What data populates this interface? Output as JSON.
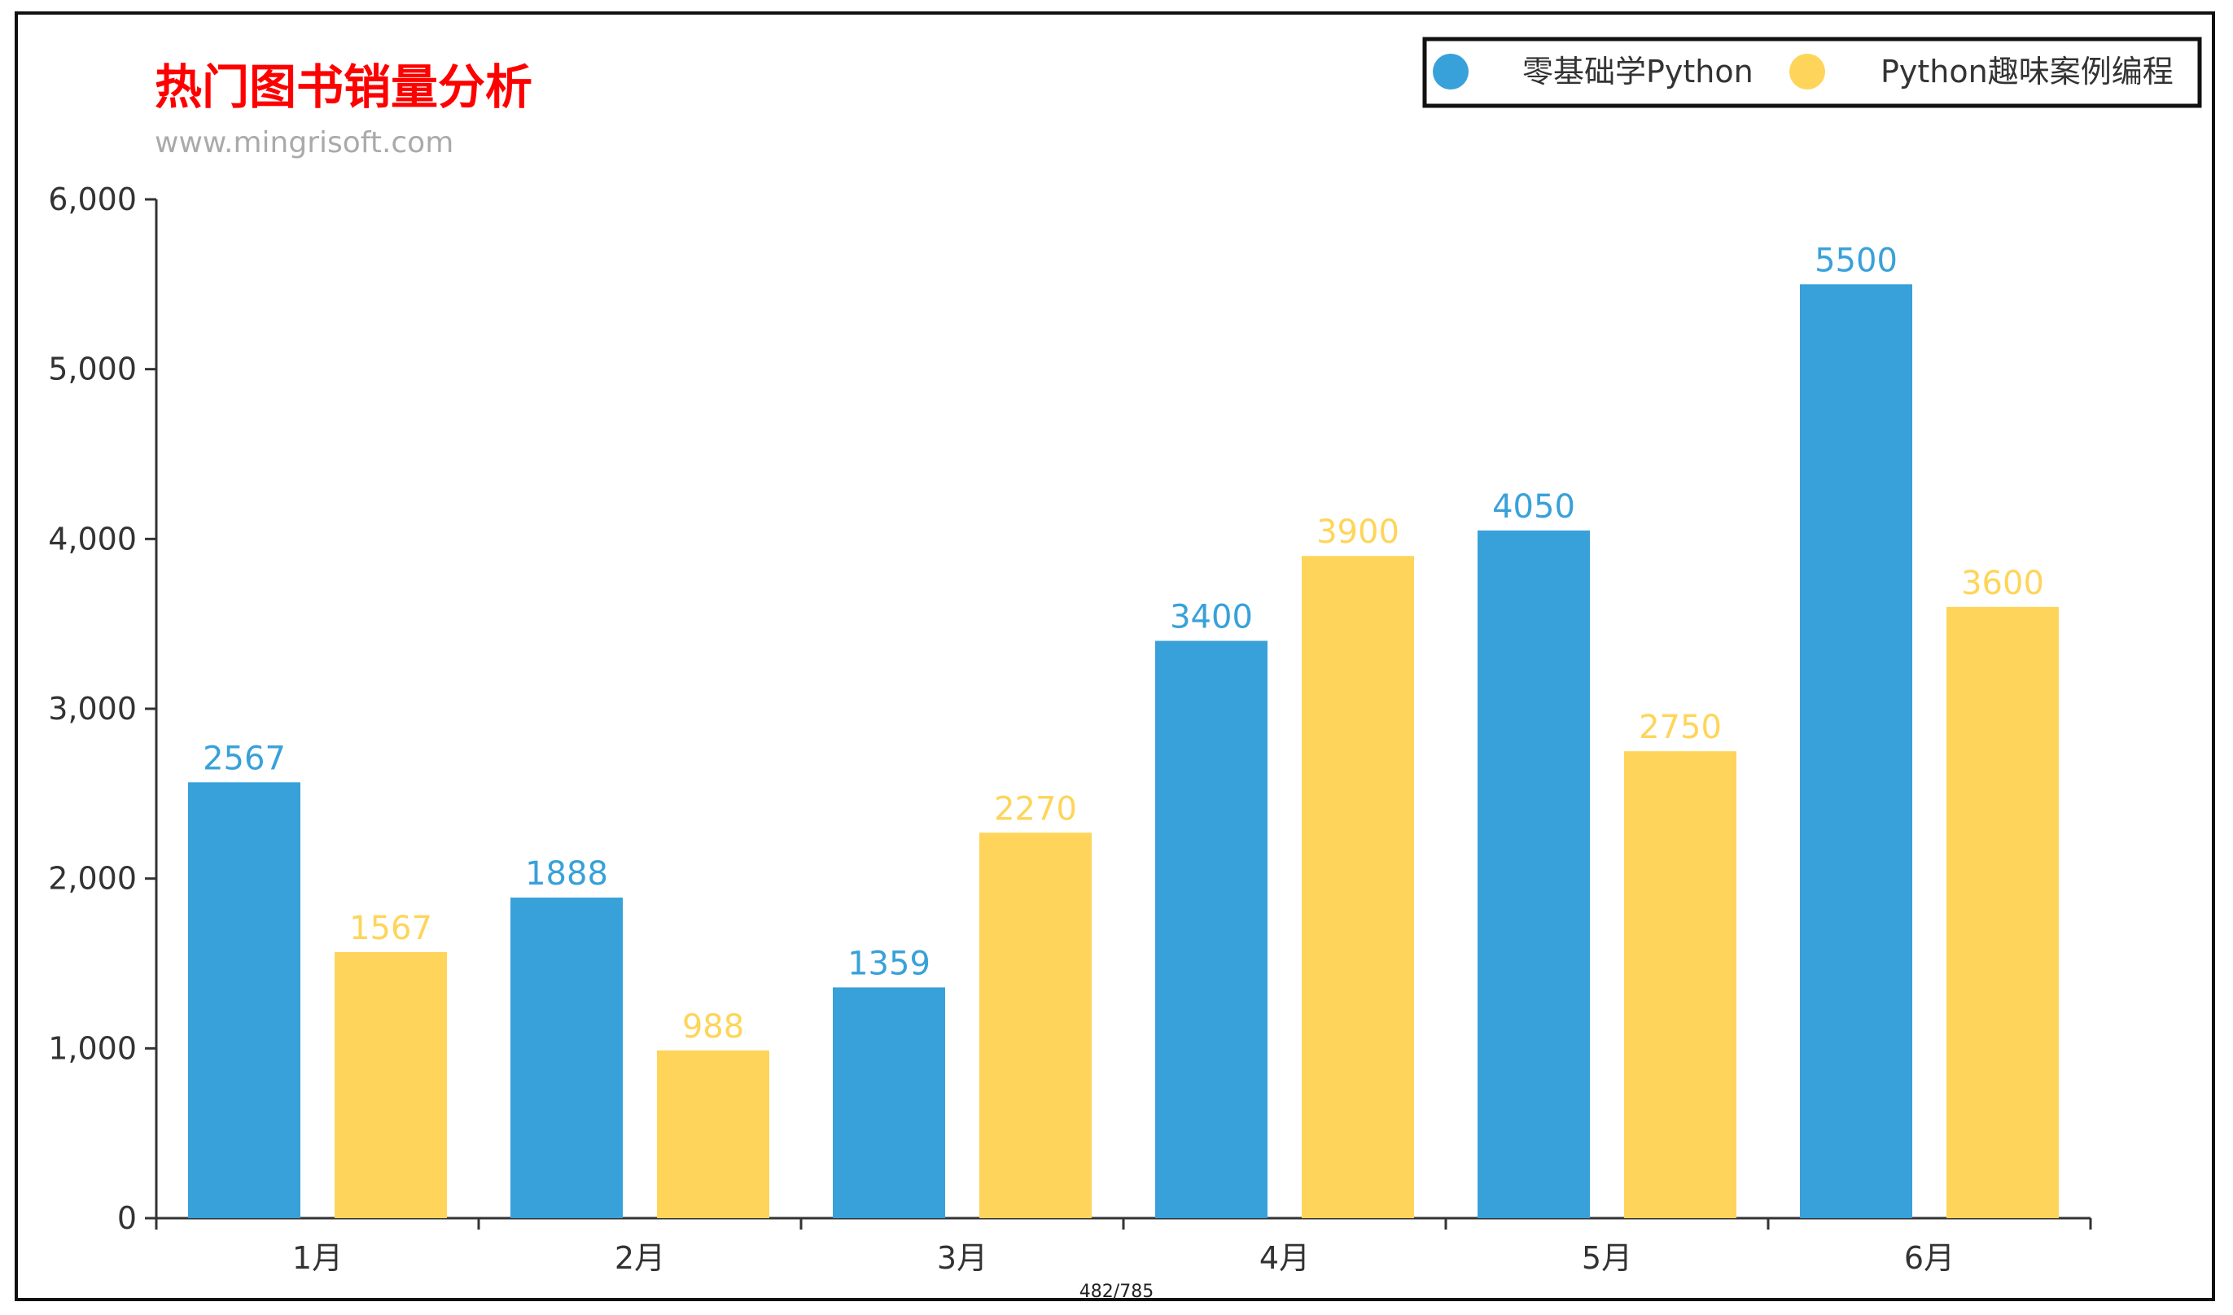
{
  "chart_data": {
    "type": "bar",
    "title": "热门图书销量分析",
    "subtitle": "www.mingrisoft.com",
    "categories": [
      "1月",
      "2月",
      "3月",
      "4月",
      "5月",
      "6月"
    ],
    "series": [
      {
        "name": "零基础学Python",
        "color": "#38a1d9",
        "values": [
          2567,
          1888,
          1359,
          3400,
          4050,
          5500
        ]
      },
      {
        "name": "Python趣味案例编程",
        "color": "#fed55a",
        "values": [
          1567,
          988,
          2270,
          3900,
          2750,
          3600
        ]
      }
    ],
    "ylim": [
      0,
      6000
    ],
    "yticks": [
      "0",
      "1,000",
      "2,000",
      "3,000",
      "4,000",
      "5,000",
      "6,000"
    ],
    "xlabel": "",
    "ylabel": "",
    "legend": "top-right",
    "grid": false,
    "colors": {
      "title": "#ff0000",
      "subtitle": "#aaaaaa",
      "axis": "#333333"
    }
  },
  "footer": {
    "page_indicator": "482/785"
  }
}
